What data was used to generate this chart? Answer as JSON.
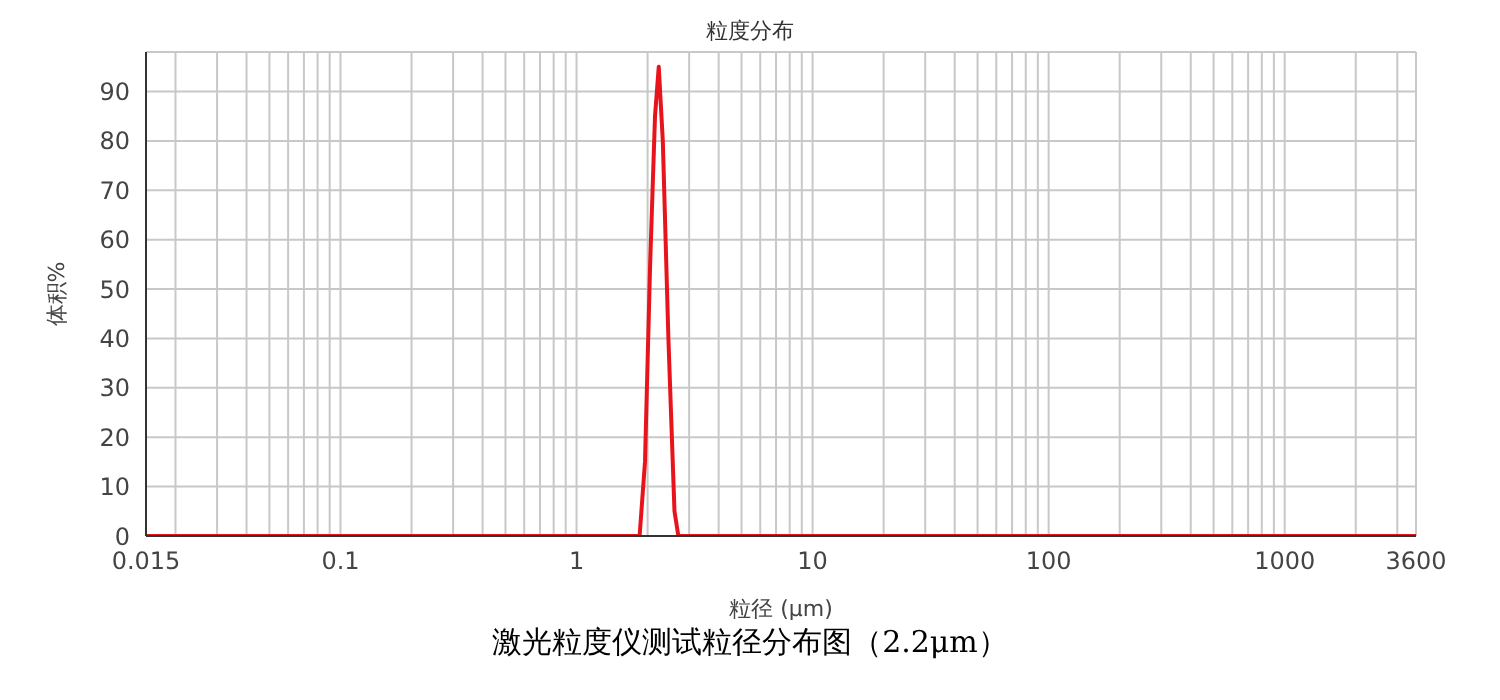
{
  "chart_data": {
    "type": "line",
    "title": "粒度分布",
    "xlabel": "粒径 (μm)",
    "ylabel": "体积%",
    "annotations": [
      "激光粒度仪测试粒径分布图（2.2μm）"
    ],
    "x": [
      0.015,
      1.85,
      1.95,
      2.05,
      2.15,
      2.23,
      2.32,
      2.45,
      2.6,
      2.7,
      3600
    ],
    "series": [
      {
        "color": "#e8141c",
        "values": [
          0,
          0,
          15,
          55,
          85,
          95,
          80,
          40,
          5,
          0,
          0
        ]
      }
    ],
    "log": "x",
    "xlim": [
      0.015,
      3600
    ],
    "ylim": [
      0,
      98
    ],
    "xticks": [
      0.015,
      {
        "value": 0.02,
        "label": null
      },
      {
        "value": 0.03,
        "label": null
      },
      {
        "value": 0.04,
        "label": null
      },
      {
        "value": 0.05,
        "label": null
      },
      {
        "value": 0.06,
        "label": null
      },
      {
        "value": 0.07,
        "label": null
      },
      {
        "value": 0.08,
        "label": null
      },
      {
        "value": 0.09,
        "label": null
      },
      0.1,
      {
        "value": 0.2,
        "label": null
      },
      {
        "value": 0.3,
        "label": null
      },
      {
        "value": 0.4,
        "label": null
      },
      {
        "value": 0.5,
        "label": null
      },
      {
        "value": 0.6,
        "label": null
      },
      {
        "value": 0.7,
        "label": null
      },
      {
        "value": 0.8,
        "label": null
      },
      {
        "value": 0.9,
        "label": null
      },
      1,
      {
        "value": 2,
        "label": null
      },
      {
        "value": 3,
        "label": null
      },
      {
        "value": 4,
        "label": null
      },
      {
        "value": 5,
        "label": null
      },
      {
        "value": 6,
        "label": null
      },
      {
        "value": 7,
        "label": null
      },
      {
        "value": 8,
        "label": null
      },
      {
        "value": 9,
        "label": null
      },
      10,
      {
        "value": 20,
        "label": null
      },
      {
        "value": 30,
        "label": null
      },
      {
        "value": 40,
        "label": null
      },
      {
        "value": 50,
        "label": null
      },
      {
        "value": 60,
        "label": null
      },
      {
        "value": 70,
        "label": null
      },
      {
        "value": 80,
        "label": null
      },
      {
        "value": 90,
        "label": null
      },
      100,
      {
        "value": 200,
        "label": null
      },
      {
        "value": 300,
        "label": null
      },
      {
        "value": 400,
        "label": null
      },
      {
        "value": 500,
        "label": null
      },
      {
        "value": 600,
        "label": null
      },
      {
        "value": 700,
        "label": null
      },
      {
        "value": 800,
        "label": null
      },
      {
        "value": 900,
        "label": null
      },
      1000,
      {
        "value": 2000,
        "label": null
      },
      {
        "value": 3000,
        "label": null
      },
      3600
    ],
    "yticks": [
      0,
      10,
      20,
      30,
      40,
      50,
      60,
      70,
      80,
      90
    ],
    "grid": true,
    "legend": false,
    "marker": "none",
    "line_style": "solid"
  }
}
